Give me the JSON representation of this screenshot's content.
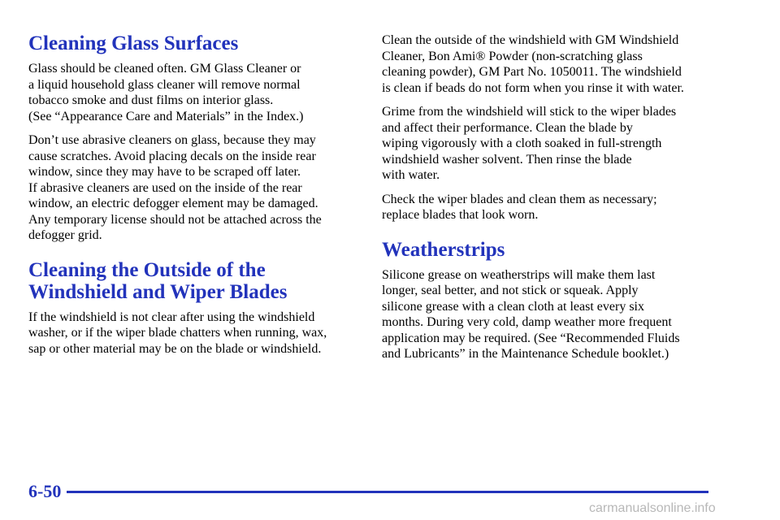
{
  "left_column": [
    {
      "heading": [
        "Cleaning Glass Surfaces"
      ],
      "paragraphs": [
        [
          "Glass should be cleaned often. GM Glass Cleaner or",
          "a liquid household glass cleaner will remove normal",
          "tobacco smoke and dust films on interior glass.",
          "(See “Appearance Care and Materials” in the Index.)"
        ],
        [
          "Don’t use abrasive cleaners on glass, because they may",
          "cause scratches. Avoid placing decals on the inside rear",
          "window, since they may have to be scraped off later.",
          "If abrasive cleaners are used on the inside of the rear",
          "window, an electric defogger element may be damaged.",
          "Any temporary license should not be attached across the",
          "defogger grid."
        ]
      ]
    },
    {
      "heading": [
        "Cleaning the Outside of the",
        "Windshield and Wiper Blades"
      ],
      "paragraphs": [
        [
          "If the windshield is not clear after using the windshield",
          "washer, or if the wiper blade chatters when running, wax,",
          "sap or other material may be on the blade or windshield."
        ]
      ]
    }
  ],
  "right_column": [
    {
      "heading": [],
      "paragraphs": [
        [
          "Clean the outside of the windshield with GM Windshield",
          "Cleaner, Bon Ami® Powder (non-scratching glass",
          "cleaning powder), GM Part No. 1050011. The windshield",
          "is clean if beads do not form when you rinse it with water."
        ],
        [
          "Grime from the windshield will stick to the wiper blades",
          "and affect their performance. Clean the blade by",
          "wiping vigorously with a cloth soaked in full-strength",
          "windshield washer solvent. Then rinse the blade",
          "with water."
        ],
        [
          "Check the wiper blades and clean them as necessary;",
          "replace blades that look worn."
        ]
      ]
    },
    {
      "heading": [
        "Weatherstrips"
      ],
      "paragraphs": [
        [
          "Silicone grease on weatherstrips will make them last",
          "longer, seal better, and not stick or squeak. Apply",
          "silicone grease with a clean cloth at least every six",
          "months. During very cold, damp weather more frequent",
          "application may be required. (See “Recommended Fluids",
          "and Lubricants” in the Maintenance Schedule booklet.)"
        ]
      ]
    }
  ],
  "footer": {
    "page_number": "6-50",
    "watermark": "carmanualsonline.info"
  }
}
